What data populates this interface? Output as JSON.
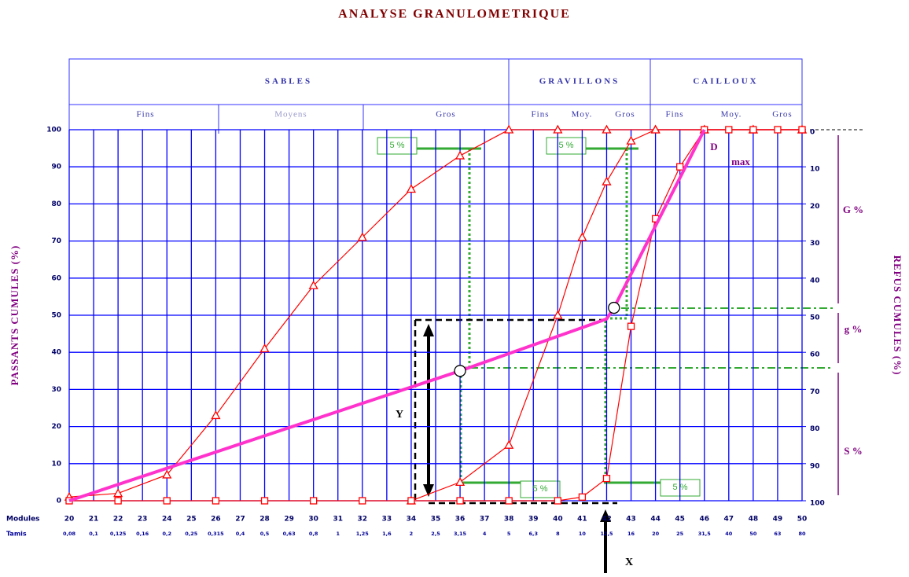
{
  "chart_data": {
    "type": "line",
    "title": "ANALYSE GRANULOMETRIQUE",
    "ylabel": "PASSANTS CUMULES (%)",
    "y2label": "REFUS CUMULES (%)",
    "header": [
      {
        "label": "SABLES",
        "subs": [
          "Fins",
          "Moyens",
          "Gros"
        ]
      },
      {
        "label": "GRAVILLONS",
        "subs": [
          "Fins",
          "Moy.",
          "Gros"
        ]
      },
      {
        "label": "CAILLOUX",
        "subs": [
          "Fins",
          "Moy.",
          "Gros"
        ]
      }
    ],
    "row_labels": [
      "Modules",
      "Tamis"
    ],
    "xlim": [
      20,
      50
    ],
    "xticks": [
      20,
      21,
      22,
      23,
      24,
      25,
      26,
      27,
      28,
      29,
      30,
      31,
      32,
      33,
      34,
      35,
      36,
      37,
      38,
      39,
      40,
      41,
      42,
      43,
      44,
      45,
      46,
      47,
      48,
      49,
      50
    ],
    "tamis": [
      "0,08",
      "0,1",
      "0,125",
      "0,16",
      "0,2",
      "0,25",
      "0,315",
      "0,4",
      "0,5",
      "0,63",
      "0,8",
      "1",
      "1,25",
      "1,6",
      "2",
      "2,5",
      "3,15",
      "4",
      "5",
      "6,3",
      "8",
      "10",
      "12,5",
      "16",
      "20",
      "25",
      "31,5",
      "40",
      "50",
      "63",
      "80"
    ],
    "ylim": [
      0,
      100
    ],
    "yticks": [
      0,
      10,
      20,
      30,
      40,
      50,
      60,
      70,
      80,
      90,
      100
    ],
    "y2lim": [
      100,
      0
    ],
    "y2ticks": [
      0,
      10,
      20,
      30,
      40,
      50,
      60,
      70,
      80,
      90,
      100
    ],
    "grid": true,
    "grid_color": "#0000ff",
    "series": [
      {
        "color": "#ff0000",
        "marker": "triangle",
        "line": true,
        "x": [
          20,
          22,
          24,
          26,
          28,
          30,
          32,
          34,
          36,
          38,
          40,
          42,
          44,
          46,
          48,
          50
        ],
        "values": [
          1,
          2,
          7,
          23,
          41,
          58,
          71,
          84,
          93,
          100,
          100,
          100,
          100,
          100,
          100,
          100
        ]
      },
      {
        "color": "#ff0000",
        "marker": "triangle",
        "line": true,
        "x": [
          34,
          36,
          38,
          40,
          41,
          42,
          43,
          44,
          46,
          48,
          50
        ],
        "values": [
          0,
          5,
          15,
          50,
          71,
          86,
          97,
          100,
          100,
          100,
          100
        ]
      },
      {
        "color": "#ff0000",
        "marker": "square",
        "line": true,
        "x": [
          20,
          22,
          24,
          26,
          28,
          30,
          32,
          34,
          36,
          38,
          40,
          41,
          42,
          43,
          44,
          45,
          46,
          47,
          48,
          49,
          50
        ],
        "values": [
          0,
          0,
          0,
          0,
          0,
          0,
          0,
          0,
          0,
          0,
          0,
          1,
          6,
          47,
          76,
          90,
          100,
          100,
          100,
          100,
          100
        ]
      },
      {
        "color": "#ff33cc",
        "marker": "none",
        "line": true,
        "width": 4,
        "x": [
          20,
          36,
          42,
          42.3,
          46
        ],
        "values": [
          0,
          35,
          49,
          52,
          100
        ]
      },
      {
        "color": "#000000",
        "marker": "circle",
        "line": false,
        "x": [
          36,
          42.3
        ],
        "values": [
          35,
          52
        ]
      }
    ],
    "annotations": [
      "5 %",
      "5 %",
      "5 %",
      "5 %",
      "Y",
      "X",
      "D",
      "max",
      "G %",
      "g %",
      "S %"
    ]
  }
}
